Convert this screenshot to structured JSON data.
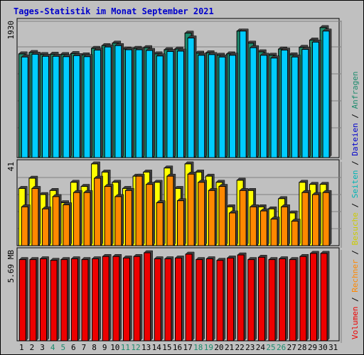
{
  "title": "Tages-Statistik im Monat September 2021",
  "colors": {
    "background": "#c0c0c0",
    "title": "#0000cc",
    "anfragen": "#1e8c6e",
    "dateien": "#00ccff",
    "seiten": "#00c8c8",
    "besuche": "#ffff00",
    "rechner": "#ff8800",
    "volumen": "#ee0000",
    "weekend_day": "#1e8c6e",
    "weekday": "#000000"
  },
  "right_label": {
    "parts": [
      {
        "text": "Volumen",
        "color": "#ee0000"
      },
      {
        "text": " / ",
        "color": "#000000"
      },
      {
        "text": "Rechner",
        "color": "#ff8800"
      },
      {
        "text": " / ",
        "color": "#000000"
      },
      {
        "text": "Besuche",
        "color": "#cccc00"
      },
      {
        "text": " / ",
        "color": "#000000"
      },
      {
        "text": "Seiten",
        "color": "#00b4b4"
      },
      {
        "text": " / ",
        "color": "#000000"
      },
      {
        "text": "Dateien",
        "color": "#0000cc"
      },
      {
        "text": " / ",
        "color": "#000000"
      },
      {
        "text": "Anfragen",
        "color": "#1e8c6e"
      }
    ]
  },
  "chart_data": [
    {
      "type": "bar",
      "panel": "top",
      "ylabel_max": "1930",
      "ylim": [
        0,
        1930
      ],
      "grid": true,
      "categories": [
        "1",
        "2",
        "3",
        "4",
        "5",
        "6",
        "7",
        "8",
        "9",
        "10",
        "11",
        "12",
        "13",
        "14",
        "15",
        "16",
        "17",
        "18",
        "19",
        "20",
        "21",
        "22",
        "23",
        "24",
        "25",
        "26",
        "27",
        "28",
        "29",
        "30",
        "31"
      ],
      "series": [
        {
          "name": "Anfragen",
          "values": [
            1500,
            1520,
            1490,
            1495,
            1490,
            1505,
            1485,
            1580,
            1620,
            1655,
            1570,
            1580,
            1590,
            1500,
            1560,
            1570,
            1800,
            1510,
            1515,
            1480,
            1500,
            1830,
            1655,
            1530,
            1480,
            1570,
            1485,
            1595,
            1700,
            1880,
            null
          ]
        },
        {
          "name": "Dateien",
          "values": [
            1455,
            1495,
            1465,
            1465,
            1460,
            1475,
            1460,
            1555,
            1600,
            1620,
            1560,
            1560,
            1550,
            1470,
            1535,
            1540,
            1730,
            1480,
            1490,
            1455,
            1480,
            1830,
            1590,
            1480,
            1440,
            1555,
            1455,
            1565,
            1670,
            1830,
            null
          ]
        }
      ]
    },
    {
      "type": "bar",
      "panel": "middle",
      "ylabel_max": "41",
      "ylim": [
        0,
        41
      ],
      "grid": true,
      "categories": [
        "1",
        "2",
        "3",
        "4",
        "5",
        "6",
        "7",
        "8",
        "9",
        "10",
        "11",
        "12",
        "13",
        "14",
        "15",
        "16",
        "17",
        "18",
        "19",
        "20",
        "21",
        "22",
        "23",
        "24",
        "25",
        "26",
        "27",
        "28",
        "29",
        "30",
        "31"
      ],
      "series": [
        {
          "name": "Besuche",
          "values": [
            28,
            33,
            25,
            27,
            21,
            31,
            29,
            40,
            36,
            31,
            28,
            34,
            36,
            31,
            38,
            28,
            40,
            36,
            34,
            31,
            19,
            32,
            27,
            19,
            18,
            23,
            16,
            31,
            30,
            30,
            null
          ]
        },
        {
          "name": "Rechner",
          "values": [
            19,
            28,
            18,
            24,
            20,
            26,
            26,
            33,
            29,
            24,
            27,
            34,
            30,
            21,
            34,
            22,
            35,
            31,
            27,
            29,
            16,
            27,
            19,
            17,
            13,
            19,
            12,
            26,
            25,
            26,
            null
          ]
        }
      ]
    },
    {
      "type": "bar",
      "panel": "bottom",
      "ylabel_max": "5.69 MB",
      "ylim": [
        0,
        5.69
      ],
      "grid": false,
      "categories": [
        "1",
        "2",
        "3",
        "4",
        "5",
        "6",
        "7",
        "8",
        "9",
        "10",
        "11",
        "12",
        "13",
        "14",
        "15",
        "16",
        "17",
        "18",
        "19",
        "20",
        "21",
        "22",
        "23",
        "24",
        "25",
        "26",
        "27",
        "28",
        "29",
        "30",
        "31"
      ],
      "series": [
        {
          "name": "Volumen",
          "values": [
            5.25,
            5.25,
            5.3,
            5.2,
            5.25,
            5.3,
            5.25,
            5.3,
            5.45,
            5.45,
            5.35,
            5.45,
            5.69,
            5.3,
            5.3,
            5.35,
            5.6,
            5.25,
            5.3,
            5.2,
            5.35,
            5.55,
            5.25,
            5.4,
            5.25,
            5.3,
            5.25,
            5.45,
            5.65,
            5.65,
            null
          ]
        }
      ]
    }
  ]
}
